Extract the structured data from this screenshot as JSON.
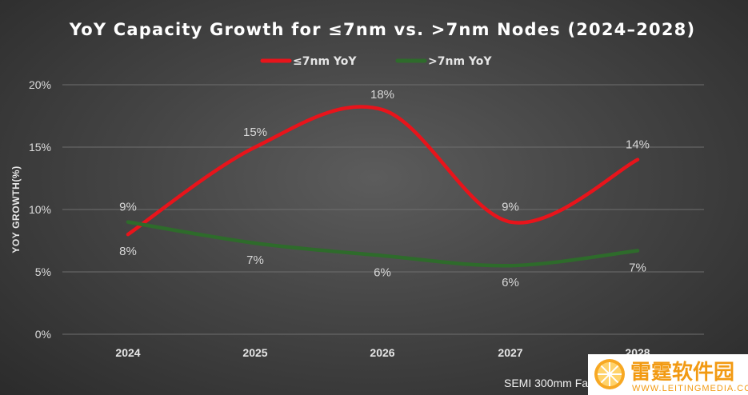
{
  "chart_data": {
    "type": "line",
    "title": "YoY Capacity Growth for ≤7nm vs. >7nm Nodes (2024–2028)",
    "ylabel": "YOY GROWTH(%)",
    "xlabel": "",
    "categories": [
      "2024",
      "2025",
      "2026",
      "2027",
      "2028"
    ],
    "ylim": [
      0,
      20
    ],
    "y_ticks": [
      0,
      5,
      10,
      15,
      20
    ],
    "y_tick_labels": [
      "0%",
      "5%",
      "10%",
      "15%",
      "20%"
    ],
    "grid": true,
    "smooth": true,
    "legend_position": "top-center",
    "series": [
      {
        "name": "≤7nm YoY",
        "color": "#e8141b",
        "values": [
          8,
          15,
          18,
          9,
          14
        ],
        "labels": [
          "8%",
          "15%",
          "18%",
          "9%",
          "14%"
        ],
        "label_position": [
          "below",
          "above",
          "above",
          "above",
          "above"
        ]
      },
      {
        "name": ">7nm YoY",
        "color": "#2e6b2b",
        "values": [
          9,
          7.3,
          6.3,
          5.5,
          6.7
        ],
        "labels": [
          "9%",
          "7%",
          "6%",
          "6%",
          "7%"
        ],
        "label_position": [
          "above",
          "below",
          "below",
          "below",
          "below"
        ]
      }
    ],
    "source": "SEMI 300mm Fa"
  },
  "watermark": {
    "name": "雷霆软件园",
    "url": "WWW.LEITINGMEDIA.COM"
  }
}
